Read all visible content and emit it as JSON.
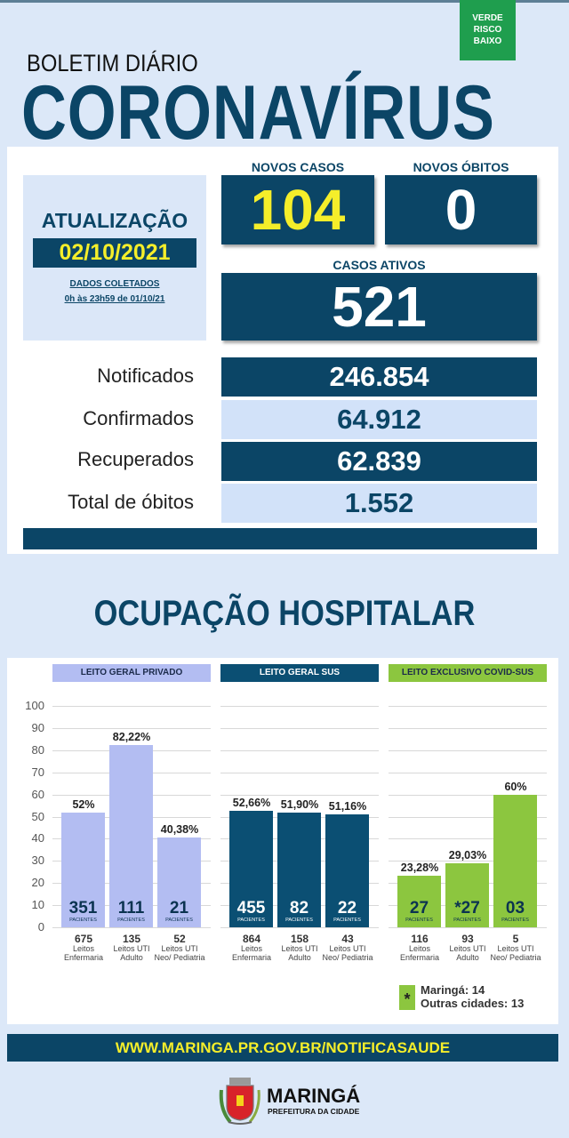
{
  "badge": {
    "line1": "VERDE",
    "line2": "RISCO",
    "line3": "BAIXO"
  },
  "header": {
    "subtitle": "BOLETIM DIÁRIO",
    "title": "CORONAVÍRUS"
  },
  "update": {
    "label": "ATUALIZAÇÃO",
    "date": "02/10/2021",
    "collected_label": "DADOS COLETADOS",
    "collected_range": "0h às 23h59 de 01/10/21"
  },
  "novos_casos": {
    "label": "NOVOS CASOS",
    "value": "104"
  },
  "novos_obitos": {
    "label": "NOVOS ÓBITOS",
    "value": "0"
  },
  "casos_ativos": {
    "label": "CASOS ATIVOS",
    "value": "521"
  },
  "stats": [
    {
      "label": "Notificados",
      "value": "246.854"
    },
    {
      "label": "Confirmados",
      "value": "64.912"
    },
    {
      "label": "Recuperados",
      "value": "62.839"
    },
    {
      "label": "Total de óbitos",
      "value": "1.552"
    }
  ],
  "section_title": "OCUPAÇÃO HOSPITALAR",
  "colors": {
    "privado": "#b3bdf2",
    "sus": "#0b4f73",
    "covid": "#8cc63f",
    "navy": "#0b4566",
    "yellow": "#f5ee2a"
  },
  "chart_data": {
    "type": "bar",
    "ylim": [
      0,
      100
    ],
    "yticks": [
      "0",
      "10",
      "20",
      "30",
      "40",
      "50",
      "60",
      "70",
      "80",
      "90",
      "100"
    ],
    "groups": [
      {
        "title": "LEITO GERAL PRIVADO",
        "bars": [
          {
            "pct": 52,
            "pct_label": "52%",
            "patients": "351",
            "beds": "675",
            "bed_type": "Leitos Enfermaria"
          },
          {
            "pct": 82.22,
            "pct_label": "82,22%",
            "patients": "111",
            "beds": "135",
            "bed_type": "Leitos UTI Adulto"
          },
          {
            "pct": 40.38,
            "pct_label": "40,38%",
            "patients": "21",
            "beds": "52",
            "bed_type": "Leitos UTI Neo/ Pediatria"
          }
        ]
      },
      {
        "title": "LEITO GERAL SUS",
        "bars": [
          {
            "pct": 52.66,
            "pct_label": "52,66%",
            "patients": "455",
            "beds": "864",
            "bed_type": "Leitos Enfermaria"
          },
          {
            "pct": 51.9,
            "pct_label": "51,90%",
            "patients": "82",
            "beds": "158",
            "bed_type": "Leitos UTI Adulto"
          },
          {
            "pct": 51.16,
            "pct_label": "51,16%",
            "patients": "22",
            "beds": "43",
            "bed_type": "Leitos UTI Neo/ Pediatria"
          }
        ]
      },
      {
        "title": "LEITO EXCLUSIVO COVID-SUS",
        "bars": [
          {
            "pct": 23.28,
            "pct_label": "23,28%",
            "patients": "27",
            "beds": "116",
            "bed_type": "Leitos Enfermaria"
          },
          {
            "pct": 29.03,
            "pct_label": "29,03%",
            "patients": "*27",
            "beds": "93",
            "bed_type": "Leitos UTI Adulto"
          },
          {
            "pct": 60,
            "pct_label": "60%",
            "patients": "03",
            "beds": "5",
            "bed_type": "Leitos UTI Neo/ Pediatria"
          }
        ]
      }
    ],
    "patients_label": "PACIENTES"
  },
  "legend": {
    "symbol": "*",
    "line1": "Maringá: 14",
    "line2": "Outras cidades: 13"
  },
  "footer": {
    "url": "WWW.MARINGA.PR.GOV.BR/NOTIFICASAUDE",
    "logo_name": "MARINGÁ",
    "logo_sub": "PREFEITURA DA CIDADE"
  }
}
